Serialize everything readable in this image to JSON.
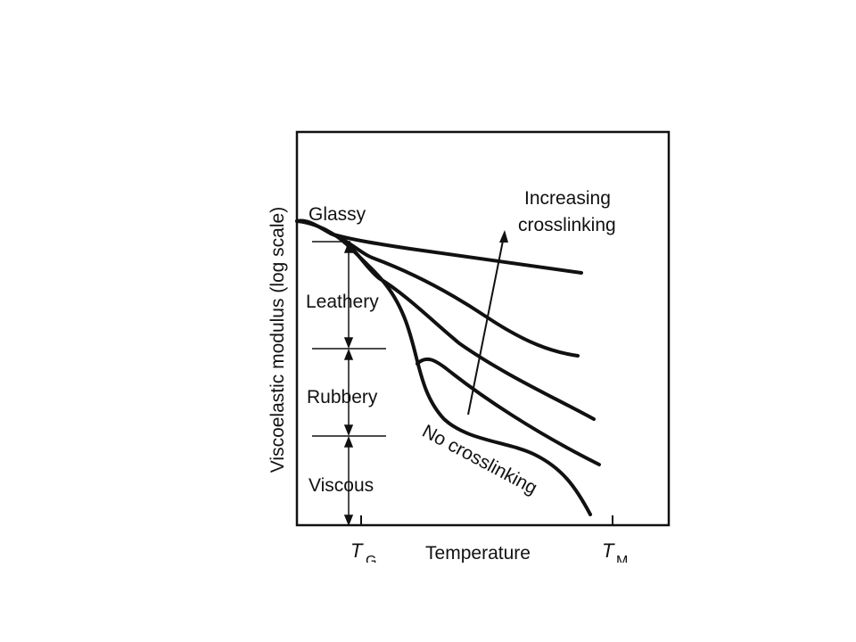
{
  "figure": {
    "ylabel": "Viscoelastic modulus (log scale)",
    "xlabel": "Temperature",
    "tg_letter": "T",
    "tg_sub": "G",
    "tm_letter": "T",
    "tm_sub": "M",
    "regions": {
      "glassy": "Glassy",
      "leathery": "Leathery",
      "rubbery": "Rubbery",
      "viscous": "Viscous"
    },
    "arrow_label_line1": "Increasing",
    "arrow_label_line2": "crosslinking",
    "curve_label": "No crosslinking"
  },
  "colors": {
    "ink": "#111111",
    "background": "#ffffff"
  }
}
